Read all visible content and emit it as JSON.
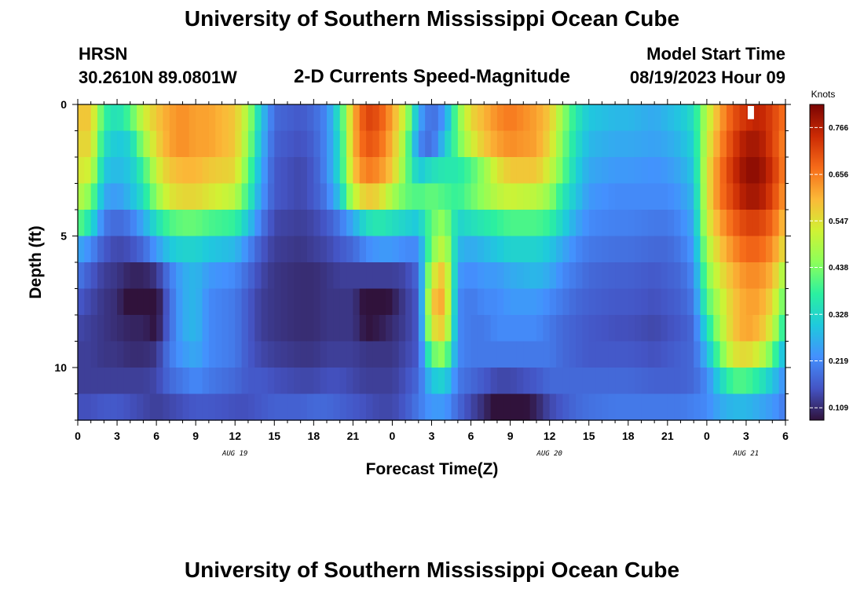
{
  "header": {
    "title": "University of Southern Mississippi Ocean Cube",
    "station": "HRSN",
    "coords": "30.2610N  89.0801W",
    "subtitle": "2-D Currents Speed-Magnitude",
    "model_label": "Model Start Time",
    "model_time": "08/19/2023 Hour 09"
  },
  "footer": {
    "title": "University of Southern Mississippi Ocean Cube"
  },
  "colors": {
    "ramp": [
      "#30123b",
      "#4454c4",
      "#4490fe",
      "#1fc9dd",
      "#2bf0a0",
      "#8cff5a",
      "#d0f234",
      "#fbb938",
      "#f66b19",
      "#cb2a04",
      "#7a0403"
    ]
  },
  "chart_data": {
    "type": "heatmap",
    "title": "2-D Currents Speed-Magnitude",
    "xlabel": "Forecast Time(Z)",
    "ylabel": "Depth (ft)",
    "x_range_hours": [
      0,
      54
    ],
    "y_range_ft": [
      0,
      12
    ],
    "x_ticks": [
      {
        "hour": 0,
        "label": "0"
      },
      {
        "hour": 3,
        "label": "3"
      },
      {
        "hour": 6,
        "label": "6"
      },
      {
        "hour": 9,
        "label": "9"
      },
      {
        "hour": 12,
        "label": "12"
      },
      {
        "hour": 15,
        "label": "15"
      },
      {
        "hour": 18,
        "label": "18"
      },
      {
        "hour": 21,
        "label": "21"
      },
      {
        "hour": 24,
        "label": "0"
      },
      {
        "hour": 27,
        "label": "3"
      },
      {
        "hour": 30,
        "label": "6"
      },
      {
        "hour": 33,
        "label": "9"
      },
      {
        "hour": 36,
        "label": "12"
      },
      {
        "hour": 39,
        "label": "15"
      },
      {
        "hour": 42,
        "label": "18"
      },
      {
        "hour": 45,
        "label": "21"
      },
      {
        "hour": 48,
        "label": "0"
      },
      {
        "hour": 51,
        "label": "3"
      },
      {
        "hour": 54,
        "label": "6"
      }
    ],
    "date_labels": [
      {
        "hour": 12,
        "label": "AUG 19"
      },
      {
        "hour": 36,
        "label": "AUG 20"
      },
      {
        "hour": 51,
        "label": "AUG 21"
      }
    ],
    "y_ticks": [
      {
        "depth": 0,
        "label": "0"
      },
      {
        "depth": 5,
        "label": "5"
      },
      {
        "depth": 10,
        "label": "10"
      }
    ],
    "colorbar": {
      "title": "Knots",
      "min": 0.08,
      "max": 0.82,
      "ticks": [
        {
          "value": 0.766,
          "label": "0.766"
        },
        {
          "value": 0.656,
          "label": "0.656"
        },
        {
          "value": 0.547,
          "label": "0.547"
        },
        {
          "value": 0.438,
          "label": "0.438"
        },
        {
          "value": 0.328,
          "label": "0.328"
        },
        {
          "value": 0.219,
          "label": "0.219"
        },
        {
          "value": 0.109,
          "label": "0.109"
        }
      ]
    },
    "depth_rows_ft": [
      0.5,
      1.5,
      2.5,
      3.5,
      4.5,
      5.5,
      6.5,
      7.5,
      8.5,
      9.5,
      10.5,
      11.5
    ],
    "keyframes_hours": [
      0,
      1,
      2,
      3,
      4,
      5,
      6,
      7,
      8,
      9,
      10,
      12,
      13,
      14,
      15,
      17,
      18,
      19,
      20,
      21,
      22,
      23,
      24,
      25,
      26,
      27,
      28,
      29,
      30,
      31,
      32,
      33,
      35,
      36,
      37,
      38,
      39,
      41,
      42,
      44,
      45,
      46,
      47,
      48,
      49,
      50,
      51,
      52,
      53,
      54
    ],
    "speed_knots": [
      [
        0.58,
        0.58,
        0.38,
        0.34,
        0.4,
        0.52,
        0.58,
        0.62,
        0.64,
        0.62,
        0.62,
        0.58,
        0.48,
        0.3,
        0.18,
        0.16,
        0.18,
        0.22,
        0.36,
        0.6,
        0.72,
        0.7,
        0.62,
        0.5,
        0.26,
        0.18,
        0.24,
        0.44,
        0.56,
        0.6,
        0.64,
        0.66,
        0.62,
        0.58,
        0.46,
        0.36,
        0.3,
        0.28,
        0.28,
        0.26,
        0.28,
        0.3,
        0.34,
        0.5,
        0.62,
        0.7,
        0.74,
        0.76,
        0.72,
        0.66
      ],
      [
        0.56,
        0.56,
        0.34,
        0.3,
        0.32,
        0.46,
        0.56,
        0.62,
        0.64,
        0.62,
        0.62,
        0.58,
        0.46,
        0.28,
        0.17,
        0.15,
        0.17,
        0.22,
        0.34,
        0.6,
        0.7,
        0.68,
        0.6,
        0.46,
        0.22,
        0.18,
        0.3,
        0.42,
        0.52,
        0.58,
        0.62,
        0.64,
        0.62,
        0.56,
        0.44,
        0.34,
        0.28,
        0.26,
        0.26,
        0.25,
        0.26,
        0.28,
        0.32,
        0.52,
        0.64,
        0.72,
        0.78,
        0.78,
        0.72,
        0.64
      ],
      [
        0.54,
        0.52,
        0.3,
        0.28,
        0.3,
        0.38,
        0.52,
        0.58,
        0.6,
        0.6,
        0.58,
        0.56,
        0.42,
        0.26,
        0.16,
        0.14,
        0.16,
        0.22,
        0.34,
        0.58,
        0.66,
        0.64,
        0.58,
        0.44,
        0.3,
        0.34,
        0.36,
        0.36,
        0.4,
        0.46,
        0.54,
        0.58,
        0.58,
        0.52,
        0.42,
        0.32,
        0.26,
        0.24,
        0.24,
        0.23,
        0.24,
        0.26,
        0.3,
        0.54,
        0.66,
        0.74,
        0.8,
        0.8,
        0.74,
        0.64
      ],
      [
        0.5,
        0.44,
        0.26,
        0.24,
        0.28,
        0.34,
        0.46,
        0.54,
        0.56,
        0.56,
        0.54,
        0.5,
        0.38,
        0.24,
        0.16,
        0.14,
        0.16,
        0.2,
        0.3,
        0.5,
        0.58,
        0.56,
        0.48,
        0.42,
        0.4,
        0.42,
        0.4,
        0.38,
        0.42,
        0.46,
        0.5,
        0.52,
        0.5,
        0.46,
        0.36,
        0.3,
        0.24,
        0.22,
        0.22,
        0.22,
        0.22,
        0.24,
        0.28,
        0.54,
        0.66,
        0.72,
        0.78,
        0.78,
        0.72,
        0.62
      ],
      [
        0.42,
        0.34,
        0.2,
        0.18,
        0.2,
        0.26,
        0.34,
        0.4,
        0.42,
        0.42,
        0.4,
        0.38,
        0.3,
        0.2,
        0.14,
        0.13,
        0.14,
        0.16,
        0.2,
        0.26,
        0.34,
        0.36,
        0.34,
        0.32,
        0.3,
        0.42,
        0.46,
        0.32,
        0.34,
        0.36,
        0.38,
        0.4,
        0.4,
        0.38,
        0.32,
        0.26,
        0.22,
        0.21,
        0.21,
        0.2,
        0.2,
        0.22,
        0.26,
        0.52,
        0.62,
        0.68,
        0.72,
        0.72,
        0.68,
        0.58
      ],
      [
        0.26,
        0.22,
        0.16,
        0.14,
        0.15,
        0.18,
        0.24,
        0.3,
        0.32,
        0.32,
        0.3,
        0.28,
        0.22,
        0.16,
        0.13,
        0.12,
        0.13,
        0.14,
        0.16,
        0.18,
        0.22,
        0.24,
        0.24,
        0.22,
        0.22,
        0.44,
        0.52,
        0.28,
        0.26,
        0.28,
        0.3,
        0.32,
        0.32,
        0.3,
        0.26,
        0.22,
        0.2,
        0.19,
        0.19,
        0.18,
        0.18,
        0.2,
        0.24,
        0.48,
        0.58,
        0.64,
        0.68,
        0.68,
        0.64,
        0.54
      ],
      [
        0.2,
        0.16,
        0.13,
        0.12,
        0.1,
        0.1,
        0.12,
        0.2,
        0.26,
        0.28,
        0.24,
        0.22,
        0.18,
        0.14,
        0.12,
        0.11,
        0.11,
        0.12,
        0.13,
        0.13,
        0.13,
        0.13,
        0.13,
        0.14,
        0.18,
        0.52,
        0.6,
        0.24,
        0.22,
        0.24,
        0.24,
        0.26,
        0.28,
        0.26,
        0.22,
        0.2,
        0.18,
        0.17,
        0.17,
        0.16,
        0.17,
        0.18,
        0.22,
        0.44,
        0.54,
        0.6,
        0.64,
        0.64,
        0.6,
        0.46
      ],
      [
        0.16,
        0.14,
        0.12,
        0.11,
        0.06,
        0.06,
        0.07,
        0.18,
        0.26,
        0.28,
        0.22,
        0.2,
        0.16,
        0.13,
        0.12,
        0.11,
        0.11,
        0.12,
        0.12,
        0.12,
        0.07,
        0.06,
        0.09,
        0.13,
        0.16,
        0.58,
        0.62,
        0.22,
        0.2,
        0.22,
        0.22,
        0.24,
        0.24,
        0.22,
        0.2,
        0.18,
        0.17,
        0.16,
        0.16,
        0.15,
        0.16,
        0.17,
        0.2,
        0.4,
        0.5,
        0.58,
        0.62,
        0.62,
        0.56,
        0.4
      ],
      [
        0.14,
        0.13,
        0.12,
        0.11,
        0.1,
        0.1,
        0.08,
        0.18,
        0.26,
        0.28,
        0.22,
        0.2,
        0.16,
        0.13,
        0.12,
        0.11,
        0.11,
        0.12,
        0.12,
        0.12,
        0.08,
        0.09,
        0.11,
        0.13,
        0.16,
        0.54,
        0.58,
        0.22,
        0.2,
        0.2,
        0.22,
        0.22,
        0.22,
        0.2,
        0.18,
        0.17,
        0.16,
        0.15,
        0.15,
        0.14,
        0.15,
        0.16,
        0.18,
        0.34,
        0.48,
        0.58,
        0.62,
        0.6,
        0.52,
        0.34
      ],
      [
        0.13,
        0.13,
        0.12,
        0.12,
        0.11,
        0.11,
        0.12,
        0.2,
        0.24,
        0.26,
        0.22,
        0.2,
        0.16,
        0.14,
        0.13,
        0.12,
        0.12,
        0.13,
        0.13,
        0.13,
        0.12,
        0.12,
        0.12,
        0.14,
        0.16,
        0.42,
        0.46,
        0.22,
        0.2,
        0.2,
        0.2,
        0.2,
        0.2,
        0.2,
        0.18,
        0.17,
        0.16,
        0.16,
        0.16,
        0.15,
        0.16,
        0.17,
        0.18,
        0.28,
        0.42,
        0.54,
        0.56,
        0.52,
        0.42,
        0.26
      ],
      [
        0.13,
        0.13,
        0.13,
        0.13,
        0.13,
        0.13,
        0.14,
        0.18,
        0.2,
        0.22,
        0.2,
        0.18,
        0.16,
        0.16,
        0.15,
        0.14,
        0.14,
        0.15,
        0.15,
        0.14,
        0.13,
        0.13,
        0.13,
        0.15,
        0.18,
        0.3,
        0.32,
        0.2,
        0.18,
        0.16,
        0.14,
        0.14,
        0.16,
        0.18,
        0.18,
        0.18,
        0.18,
        0.18,
        0.18,
        0.17,
        0.17,
        0.17,
        0.18,
        0.22,
        0.32,
        0.4,
        0.4,
        0.36,
        0.3,
        0.22
      ],
      [
        0.15,
        0.15,
        0.16,
        0.16,
        0.15,
        0.14,
        0.13,
        0.14,
        0.15,
        0.16,
        0.16,
        0.15,
        0.15,
        0.16,
        0.17,
        0.17,
        0.18,
        0.18,
        0.17,
        0.16,
        0.15,
        0.14,
        0.14,
        0.16,
        0.2,
        0.24,
        0.24,
        0.18,
        0.14,
        0.11,
        0.06,
        0.05,
        0.1,
        0.14,
        0.16,
        0.18,
        0.19,
        0.2,
        0.2,
        0.2,
        0.2,
        0.2,
        0.21,
        0.22,
        0.26,
        0.28,
        0.28,
        0.26,
        0.24,
        0.2
      ]
    ],
    "missing_cells": [
      {
        "hour": 51,
        "depth_rows": [
          0
        ]
      }
    ]
  }
}
